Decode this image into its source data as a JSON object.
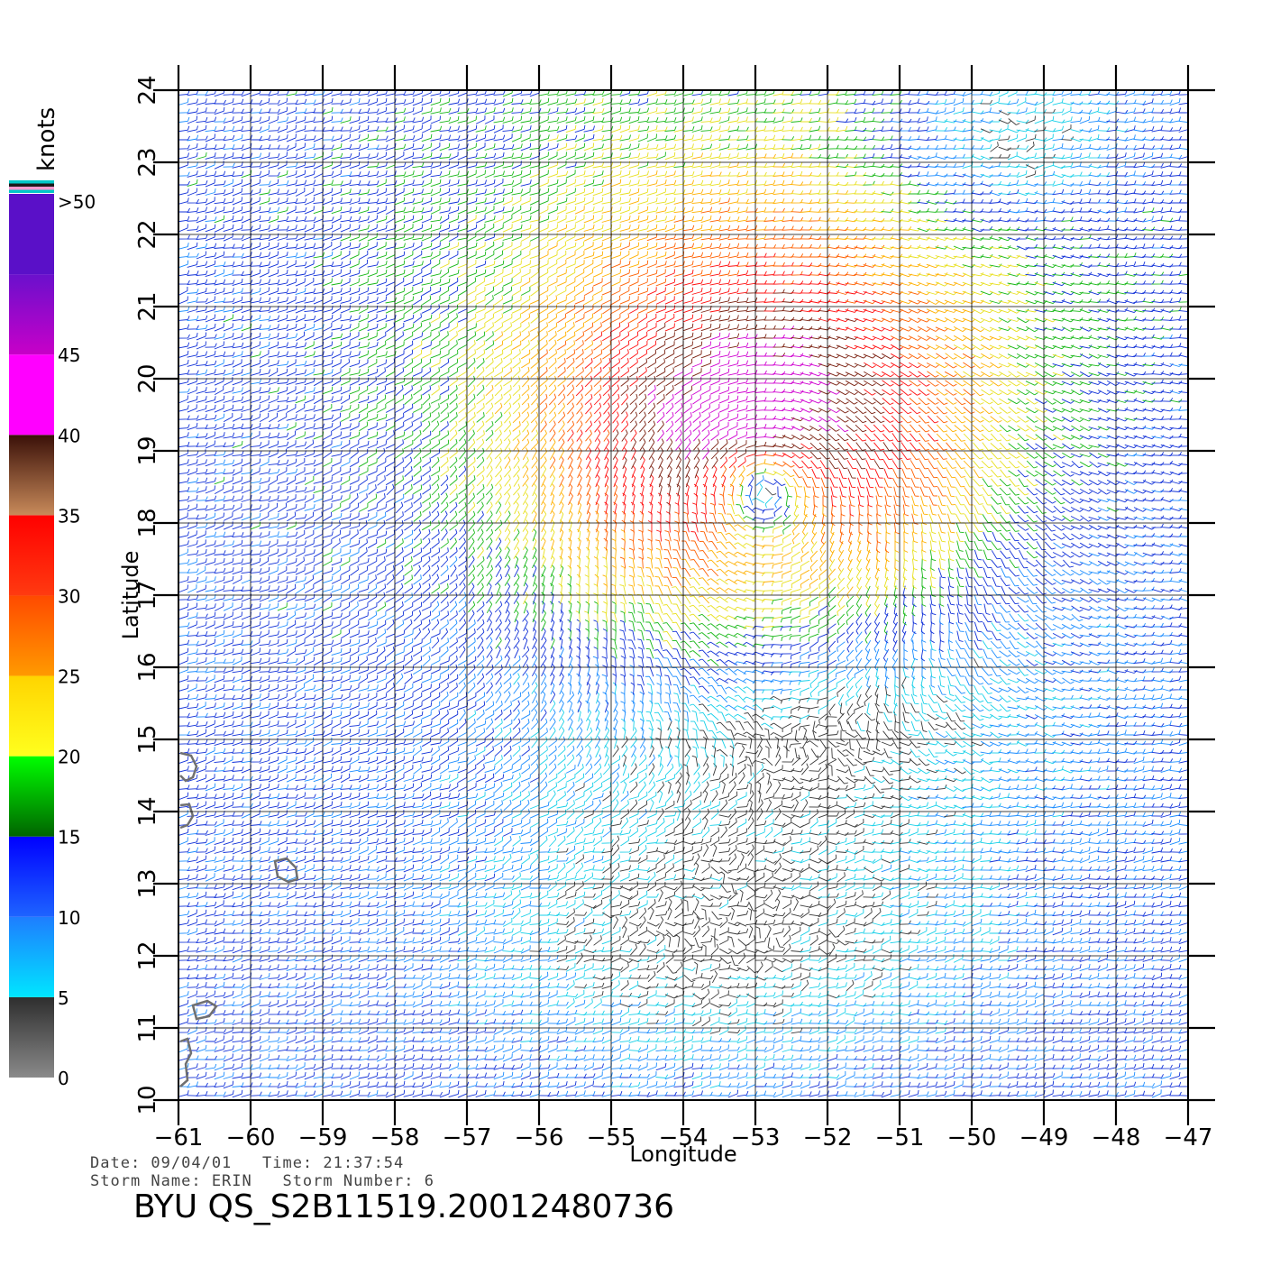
{
  "colorbar": {
    "unit": "knots",
    "bands": [
      {
        "label": "0",
        "from": 0,
        "to": 5,
        "color_top": "#2e2e2e",
        "color_bottom": "#8a8a8a"
      },
      {
        "label": "5",
        "from": 5,
        "to": 10,
        "color_top": "#1e7dff",
        "color_bottom": "#00e6ff"
      },
      {
        "label": "10",
        "from": 10,
        "to": 15,
        "color_top": "#0000ff",
        "color_bottom": "#1e64ff"
      },
      {
        "label": "15",
        "from": 15,
        "to": 20,
        "color_top": "#00ff00",
        "color_bottom": "#006400"
      },
      {
        "label": "20",
        "from": 20,
        "to": 25,
        "color_top": "#ffd400",
        "color_bottom": "#ffff1e"
      },
      {
        "label": "25",
        "from": 25,
        "to": 30,
        "color_top": "#ff4a00",
        "color_bottom": "#ff9a00"
      },
      {
        "label": "30",
        "from": 30,
        "to": 35,
        "color_top": "#ff0000",
        "color_bottom": "#ff3a10"
      },
      {
        "label": "35",
        "from": 35,
        "to": 40,
        "color_top": "#3a1008",
        "color_bottom": "#c88a5a"
      },
      {
        "label": "40",
        "from": 40,
        "to": 45,
        "color_top": "#ff00ff",
        "color_bottom": "#ff00ff"
      },
      {
        "label": "45",
        "from": 45,
        "to": 50,
        "color_top": "#6a10cc",
        "color_bottom": "#c800c8"
      },
      {
        "label": ">50",
        "from": 50,
        "to": 55,
        "color_top": "#5a10c8",
        "color_bottom": "#5a10c8"
      }
    ],
    "top_stripe_colors": [
      "#00c8c8",
      "#1a1a1a",
      "#ff9ad0",
      "#00c8c8"
    ]
  },
  "chart_data": {
    "type": "wind-vector-map",
    "xlabel": "Longitude",
    "ylabel": "Latitude",
    "xlim": [
      -61,
      -47
    ],
    "ylim": [
      10,
      24
    ],
    "x_ticks": [
      -61,
      -60,
      -59,
      -58,
      -57,
      -56,
      -55,
      -54,
      -53,
      -52,
      -51,
      -50,
      -49,
      -48,
      -47
    ],
    "y_ticks": [
      10,
      11,
      12,
      13,
      14,
      15,
      16,
      17,
      18,
      19,
      20,
      21,
      22,
      23,
      24
    ],
    "grid": true,
    "storm_center": {
      "lon": -52.9,
      "lat": 18.6
    },
    "wind_speed_unit": "knots"
  },
  "footer": {
    "date_line": "Date: 09/04/01   Time: 21:37:54",
    "storm_line": "Storm Name: ERIN   Storm Number: 6",
    "id_line": "BYU QS_S2B11519.20012480736"
  }
}
